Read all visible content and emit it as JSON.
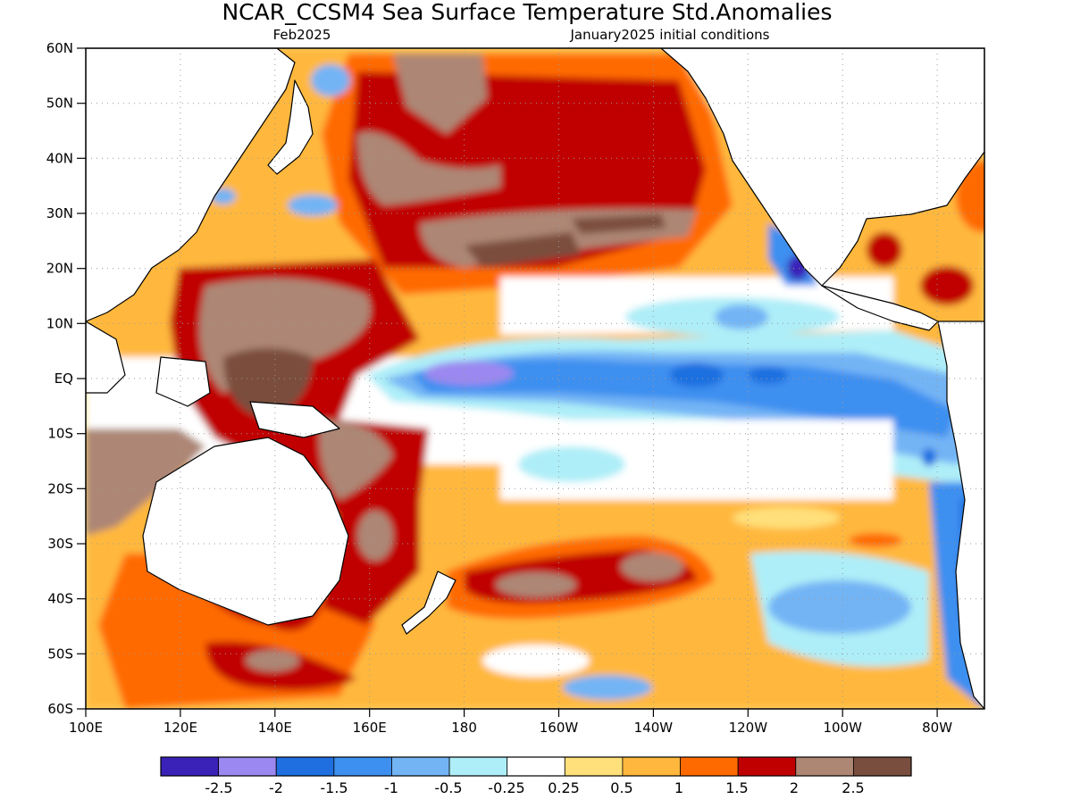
{
  "header": {
    "title": "NCAR_CCSM4 Sea Surface Temperature Std.Anomalies",
    "valid_month": "Feb2025",
    "init": "January2025 initial conditions"
  },
  "map": {
    "lon_range": [
      100,
      290
    ],
    "lat_range": [
      -60,
      60
    ],
    "lat_labels": [
      "60N",
      "50N",
      "40N",
      "30N",
      "20N",
      "10N",
      "EQ",
      "10S",
      "20S",
      "30S",
      "40S",
      "50S",
      "60S"
    ],
    "lon_labels": [
      "100E",
      "120E",
      "140E",
      "160E",
      "180",
      "160W",
      "140W",
      "120W",
      "100W",
      "80W"
    ],
    "land_color": "#ffffff",
    "gridlines": "dotted"
  },
  "colorbar": {
    "colors": [
      "#3a22b8",
      "#9b88f0",
      "#1f6fe0",
      "#3d8ff0",
      "#73b4f5",
      "#aeeef8",
      "#ffffff",
      "#ffe07a",
      "#ffb83d",
      "#ff6a00",
      "#c00000",
      "#ad8674",
      "#7a4e3e"
    ],
    "labels": [
      "-2.5",
      "-2",
      "-1.5",
      "-1",
      "-0.5",
      "-0.25",
      "0.25",
      "0.5",
      "1",
      "1.5",
      "2",
      "2.5"
    ]
  }
}
